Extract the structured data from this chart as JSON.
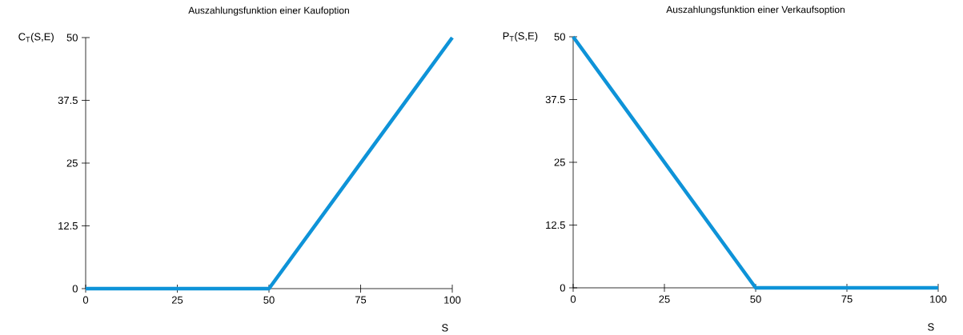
{
  "chart_data": [
    {
      "type": "line",
      "title": "Auszahlungsfunktion einer Kaufoption",
      "xlabel": "S",
      "ylabel": "C$_{T}$(S,E)",
      "xlim": [
        0,
        100
      ],
      "ylim": [
        0,
        50
      ],
      "xticks": [
        0,
        25,
        50,
        75,
        100
      ],
      "yticks": [
        0,
        12.5,
        25,
        37.5,
        50
      ],
      "line_style": "solid",
      "series": [
        {
          "color": "#0e93d8",
          "x": [
            0,
            50,
            100
          ],
          "values": [
            0,
            0,
            50
          ]
        }
      ]
    },
    {
      "type": "line",
      "title": "Auszahlungsfunktion einer Verkaufsoption",
      "xlabel": "S",
      "ylabel": "P$_{T}$(S,E)",
      "xlim": [
        0,
        100
      ],
      "ylim": [
        0,
        50
      ],
      "xticks": [
        0,
        25,
        50,
        75,
        100
      ],
      "yticks": [
        0,
        12.5,
        25,
        37.5,
        50
      ],
      "line_style": "solid",
      "series": [
        {
          "color": "#0e93d8",
          "x": [
            0,
            50,
            100
          ],
          "values": [
            50,
            0,
            0
          ]
        }
      ]
    }
  ]
}
